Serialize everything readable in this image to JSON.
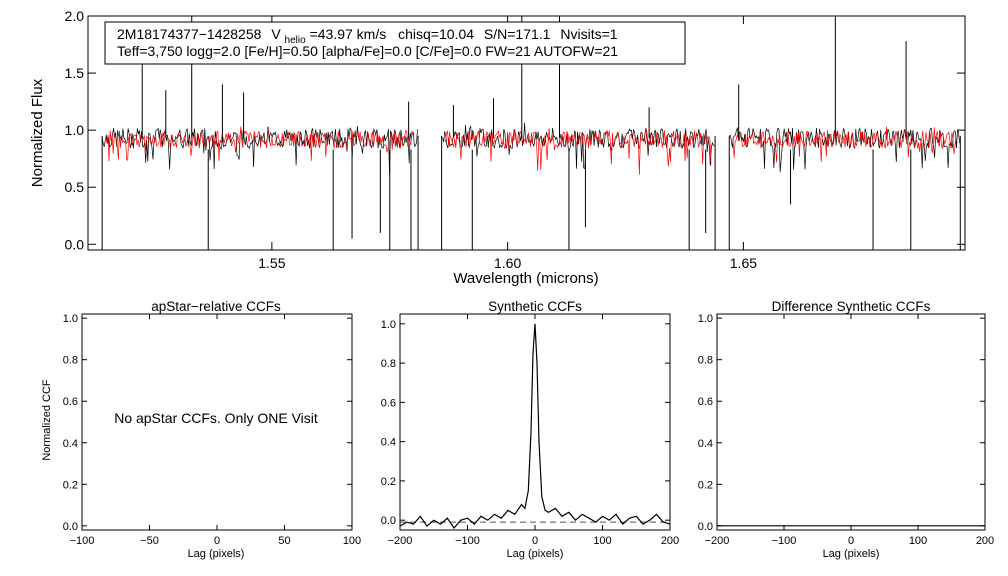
{
  "chart_data": [
    {
      "type": "line",
      "ylabel": "Normalized Flux",
      "xlabel": "Wavelength (microns)",
      "xlim": [
        1.511,
        1.697
      ],
      "ylim": [
        -0.05,
        2.0
      ],
      "xticks": [
        1.55,
        1.6,
        1.65
      ],
      "xtick_labels": [
        "1.55",
        "1.60",
        "1.65"
      ],
      "yticks": [
        0.0,
        0.5,
        1.0,
        1.5,
        2.0
      ],
      "ytick_labels": [
        "0.0",
        "0.5",
        "1.0",
        "1.5",
        "2.0"
      ],
      "chip_ranges": [
        [
          1.514,
          1.581
        ],
        [
          1.586,
          1.644
        ],
        [
          1.647,
          1.696
        ]
      ],
      "series": [
        {
          "color": "#000000",
          "level": 0.93,
          "scatter": 0.09
        },
        {
          "color": "#ff0000",
          "level": 0.92,
          "scatter": 0.08
        }
      ],
      "spikes": [
        {
          "x": 1.5225,
          "y": 1.62
        },
        {
          "x": 1.5275,
          "y": 1.35
        },
        {
          "x": 1.533,
          "y": 2.0
        },
        {
          "x": 1.5395,
          "y": 1.4
        },
        {
          "x": 1.544,
          "y": 1.33
        },
        {
          "x": 1.603,
          "y": 2.0
        },
        {
          "x": 1.611,
          "y": 2.0
        },
        {
          "x": 1.5885,
          "y": 1.22
        },
        {
          "x": 1.597,
          "y": 1.28
        },
        {
          "x": 1.63,
          "y": 1.2
        },
        {
          "x": 1.6695,
          "y": 2.0
        },
        {
          "x": 1.6845,
          "y": 1.78
        },
        {
          "x": 1.649,
          "y": 1.4
        },
        {
          "x": 1.579,
          "y": 1.25
        }
      ],
      "dips": [
        {
          "x": 1.5365,
          "y": -0.05
        },
        {
          "x": 1.563,
          "y": -0.05
        },
        {
          "x": 1.567,
          "y": 0.05
        },
        {
          "x": 1.573,
          "y": 0.1
        },
        {
          "x": 1.575,
          "y": -0.05
        },
        {
          "x": 1.5795,
          "y": -0.05
        },
        {
          "x": 1.5925,
          "y": -0.05
        },
        {
          "x": 1.613,
          "y": -0.05
        },
        {
          "x": 1.6165,
          "y": 0.15
        },
        {
          "x": 1.6385,
          "y": -0.05
        },
        {
          "x": 1.642,
          "y": 0.1
        },
        {
          "x": 1.6775,
          "y": -0.05
        },
        {
          "x": 1.6855,
          "y": -0.05
        },
        {
          "x": 1.66,
          "y": 0.35
        }
      ],
      "annotation": {
        "star": "2M18174377−1428258",
        "vhelio_prefix": "V",
        "vhelio_sub": "helio",
        "vhelio_value": "=43.97 km/s",
        "chisq": "chisq=10.04",
        "snr": "S/N=171.1",
        "nvisits": "Nvisits=1",
        "params": "Teff=3,750 logg=2.0 [Fe/H]=0.50 [alpha/Fe]=0.0 [C/Fe]=0.0 FW=21 AUTOFW=21"
      }
    },
    {
      "type": "line",
      "title": "apStar−relative CCFs",
      "xlabel": "Lag (pixels)",
      "ylabel": "Normalized CCF",
      "xlim": [
        -100,
        100
      ],
      "ylim": [
        -0.02,
        1.02
      ],
      "xticks": [
        -100,
        -50,
        0,
        50,
        100
      ],
      "xtick_labels": [
        "−100",
        "−50",
        "0",
        "50",
        "100"
      ],
      "yticks": [
        0.0,
        0.2,
        0.4,
        0.6,
        0.8,
        1.0
      ],
      "ytick_labels": [
        "0.0",
        "0.2",
        "0.4",
        "0.6",
        "0.8",
        "1.0"
      ],
      "message": "No apStar CCFs.  Only ONE Visit"
    },
    {
      "type": "line",
      "title": "Synthetic CCFs",
      "xlabel": "Lag (pixels)",
      "xlim": [
        -200,
        200
      ],
      "ylim": [
        -0.05,
        1.05
      ],
      "xticks": [
        -200,
        -100,
        0,
        100,
        200
      ],
      "xtick_labels": [
        "−200",
        "−100",
        "0",
        "100",
        "200"
      ],
      "yticks": [
        0.0,
        0.2,
        0.4,
        0.6,
        0.8,
        1.0
      ],
      "ytick_labels": [
        "0.0",
        "0.2",
        "0.4",
        "0.6",
        "0.8",
        "1.0"
      ],
      "peak": {
        "x": 0,
        "y": 1.0
      },
      "baseline": -0.01,
      "x": [
        -200,
        -190,
        -180,
        -170,
        -160,
        -150,
        -140,
        -130,
        -120,
        -110,
        -100,
        -90,
        -80,
        -70,
        -60,
        -50,
        -40,
        -30,
        -20,
        -15,
        -10,
        -6,
        -3,
        0,
        3,
        6,
        10,
        15,
        20,
        30,
        40,
        50,
        60,
        70,
        80,
        90,
        100,
        110,
        120,
        130,
        140,
        150,
        160,
        170,
        180,
        190,
        200
      ],
      "y": [
        -0.03,
        -0.01,
        -0.02,
        0.02,
        -0.03,
        0.0,
        -0.02,
        0.01,
        -0.04,
        0.0,
        0.01,
        -0.02,
        0.02,
        0.0,
        0.03,
        0.01,
        0.05,
        0.03,
        0.08,
        0.06,
        0.15,
        0.45,
        0.85,
        1.0,
        0.8,
        0.4,
        0.12,
        0.05,
        0.04,
        0.06,
        0.02,
        0.04,
        0.0,
        0.03,
        0.01,
        -0.01,
        0.02,
        0.0,
        0.03,
        -0.02,
        0.01,
        0.02,
        -0.02,
        0.0,
        0.03,
        -0.01,
        -0.02
      ]
    },
    {
      "type": "line",
      "title": "Difference Synthetic CCFs",
      "xlabel": "Lag (pixels)",
      "xlim": [
        -200,
        200
      ],
      "ylim": [
        -0.02,
        1.02
      ],
      "xticks": [
        -200,
        -100,
        0,
        100,
        200
      ],
      "xtick_labels": [
        "−200",
        "−100",
        "0",
        "100",
        "200"
      ],
      "yticks": [
        0.0,
        0.2,
        0.4,
        0.6,
        0.8,
        1.0
      ],
      "ytick_labels": [
        "0.0",
        "0.2",
        "0.4",
        "0.6",
        "0.8",
        "1.0"
      ],
      "x": [
        -200,
        200
      ],
      "y": [
        0.0,
        0.0
      ]
    }
  ]
}
